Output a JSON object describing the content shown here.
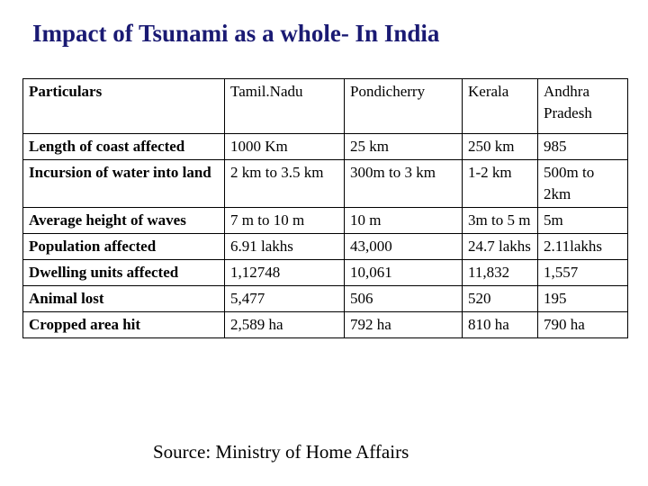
{
  "title": "Impact of Tsunami as a whole- In India",
  "table": {
    "headers": [
      "Particulars",
      "Tamil.Nadu",
      "Pondicherry",
      "Kerala",
      "Andhra Pradesh"
    ],
    "rows": [
      [
        "Length of coast affected",
        "1000 Km",
        "25 km",
        "250 km",
        "985"
      ],
      [
        "Incursion of water into land",
        "2 km to 3.5 km",
        "300m to 3 km",
        "1-2 km",
        "500m to 2km"
      ],
      [
        "Average height of waves",
        "7 m to 10 m",
        "10 m",
        "3m to 5 m",
        "5m"
      ],
      [
        "Population affected",
        "6.91 lakhs",
        "43,000",
        "24.7 lakhs",
        "2.11lakhs"
      ],
      [
        "Dwelling units affected",
        "1,12748",
        "10,061",
        "11,832",
        "1,557"
      ],
      [
        "Animal  lost",
        "5,477",
        "506",
        "520",
        "195"
      ],
      [
        "Cropped area hit",
        "2,589 ha",
        "792 ha",
        "810 ha",
        "790 ha"
      ]
    ]
  },
  "source": "Source: Ministry of Home Affairs"
}
